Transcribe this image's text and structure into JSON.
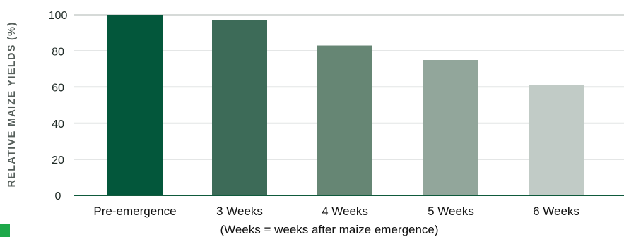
{
  "chart_data": {
    "type": "bar",
    "categories": [
      "Pre-emergence",
      "3 Weeks",
      "4 Weeks",
      "5 Weeks",
      "6 Weeks"
    ],
    "values": [
      100,
      97,
      83,
      75,
      61
    ],
    "bar_colors": [
      "#03573b",
      "#3d6b58",
      "#668674",
      "#92a69b",
      "#c1cbc6"
    ],
    "ylabel": "RELATIVE MAIZE YIELDS (%)",
    "xlabel": "(Weeks = weeks after maize emergence)",
    "ylim": [
      0,
      100
    ],
    "yticks": [
      0,
      20,
      40,
      60,
      80,
      100
    ],
    "grid": true,
    "accent_color": "#0f5a3c"
  }
}
